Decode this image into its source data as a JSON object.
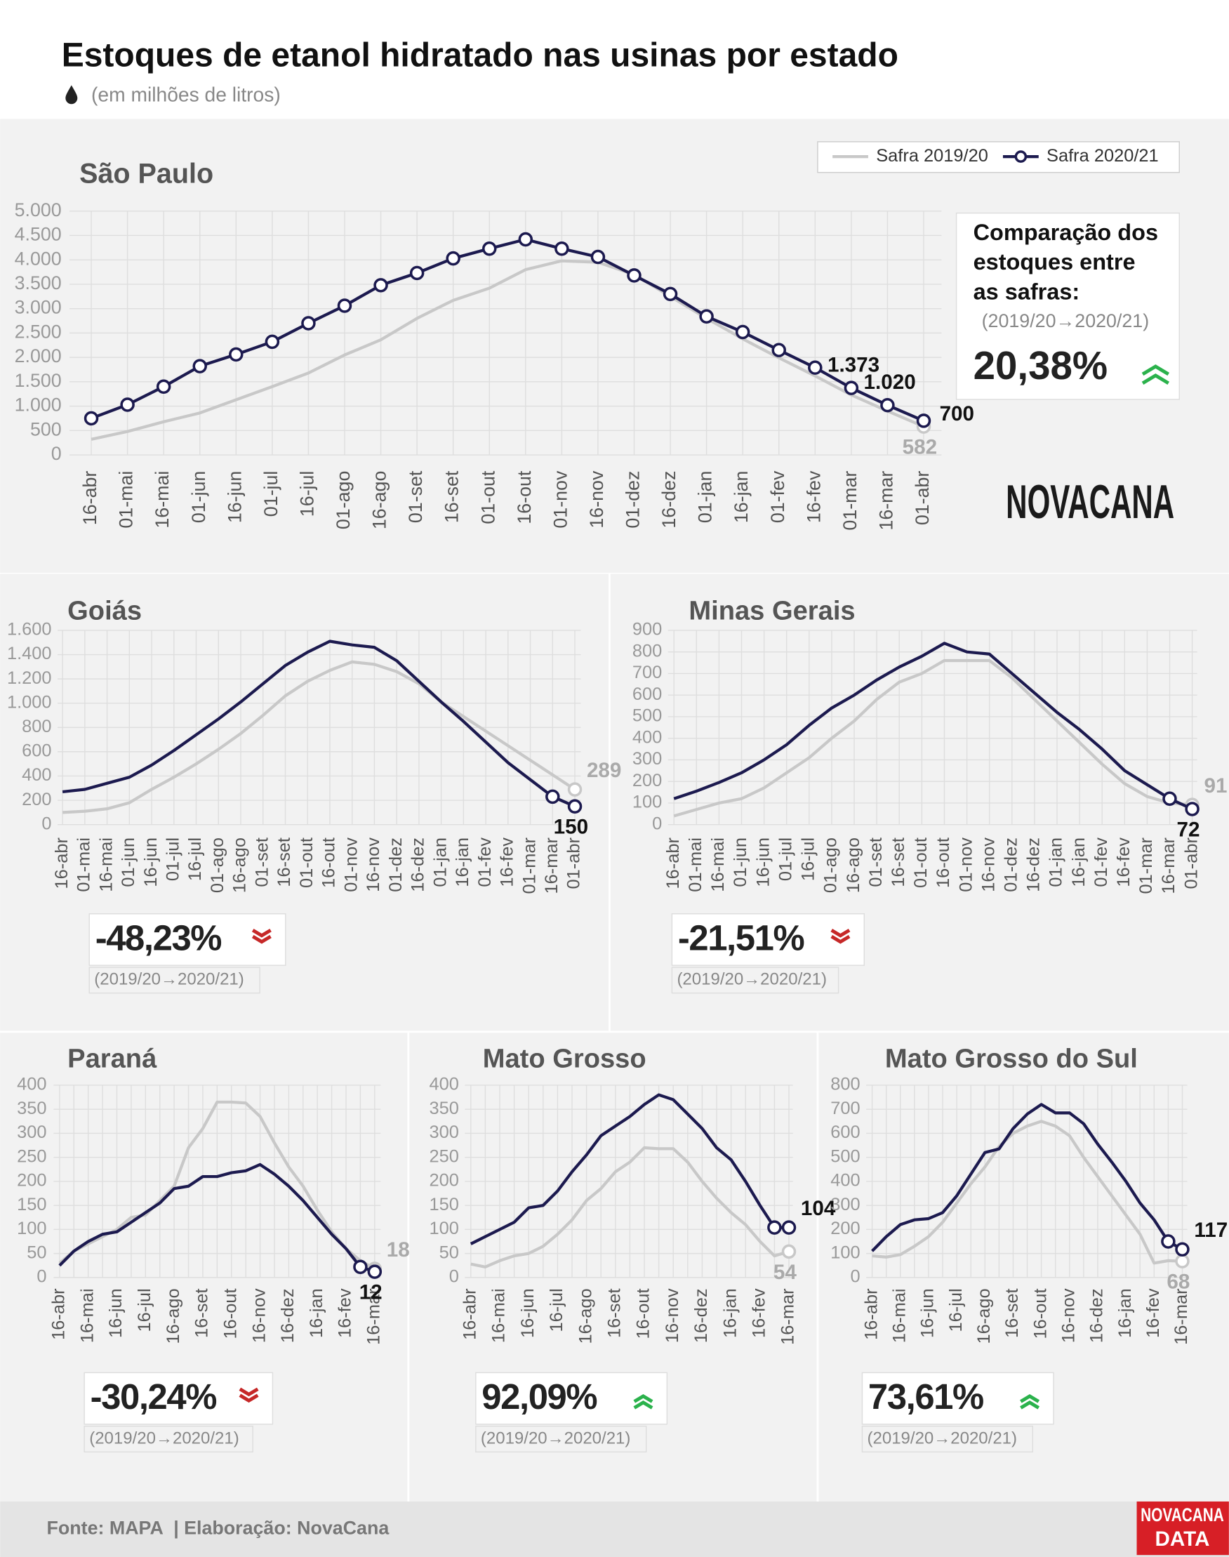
{
  "header": {
    "title": "Estoques de etanol hidratado nas usinas por estado",
    "subtitle": "(em milhões de litros)",
    "logo": "NOVACANA"
  },
  "footer": {
    "source": "Fonte: MAPA",
    "credit": "| Elaboração: NovaCana",
    "logo_top": "NOVACANA",
    "logo_bottom": "DATA"
  },
  "chart_data": [
    {
      "type": "line",
      "title": "São Paulo",
      "grid": true,
      "categories": [
        "16-abr",
        "01-mai",
        "16-mai",
        "01-jun",
        "16-jun",
        "01-jul",
        "16-jul",
        "01-ago",
        "16-ago",
        "01-set",
        "16-set",
        "01-out",
        "16-out",
        "01-nov",
        "16-nov",
        "01-dez",
        "16-dez",
        "01-jan",
        "16-jan",
        "01-fev",
        "16-fev",
        "01-mar",
        "16-mar",
        "01-abr"
      ],
      "series": [
        {
          "name": "Safra 2019/20",
          "color": "#c8c8c8",
          "markers": "last",
          "values": [
            320,
            480,
            680,
            860,
            1130,
            1400,
            1680,
            2050,
            2360,
            2800,
            3170,
            3420,
            3800,
            3980,
            3950,
            3700,
            3250,
            2800,
            2380,
            1990,
            1620,
            1230,
            900,
            582
          ],
          "value_labels": [
            null,
            null,
            null,
            null,
            null,
            null,
            null,
            null,
            null,
            null,
            null,
            null,
            null,
            null,
            null,
            null,
            null,
            null,
            null,
            null,
            null,
            null,
            null,
            "582"
          ]
        },
        {
          "name": "Safra 2020/21",
          "color": "#1c1a4f",
          "markers": "all",
          "values": [
            750,
            1030,
            1400,
            1820,
            2060,
            2320,
            2700,
            3060,
            3480,
            3730,
            4030,
            4230,
            4420,
            4230,
            4060,
            3680,
            3300,
            2840,
            2520,
            2150,
            1790,
            1373,
            1020,
            700
          ],
          "value_labels": [
            null,
            null,
            null,
            null,
            null,
            null,
            null,
            null,
            null,
            null,
            null,
            null,
            null,
            null,
            null,
            null,
            null,
            null,
            null,
            null,
            null,
            "1.373",
            "1.020",
            "700"
          ]
        }
      ],
      "ylim": [
        0,
        5000
      ],
      "yticks": [
        0,
        500,
        {
          "value": 1000,
          "label": "1.000"
        },
        {
          "value": 1500,
          "label": "1.500"
        },
        {
          "value": 2000,
          "label": "2.000"
        },
        {
          "value": 2500,
          "label": "2.500"
        },
        {
          "value": 3000,
          "label": "3.000"
        },
        {
          "value": 3500,
          "label": "3.500"
        },
        {
          "value": 4000,
          "label": "4.000"
        },
        {
          "value": 4500,
          "label": "4.500"
        },
        {
          "value": 5000,
          "label": "5.000"
        }
      ],
      "comparison_heading": [
        "Comparação dos",
        "estoques entre",
        "as safras:"
      ],
      "comparison_period": "(2019/20→2020/21)",
      "comparison": "20,38%",
      "trend": "up"
    },
    {
      "type": "line",
      "title": "Goiás",
      "grid": true,
      "categories": [
        "16-abr",
        "01-mai",
        "16-mai",
        "01-jun",
        "16-jun",
        "01-jul",
        "16-jul",
        "01-ago",
        "16-ago",
        "01-set",
        "16-set",
        "01-out",
        "16-out",
        "01-nov",
        "16-nov",
        "01-dez",
        "16-dez",
        "01-jan",
        "16-jan",
        "01-fev",
        "16-fev",
        "01-mar",
        "16-mar",
        "01-abr"
      ],
      "series": [
        {
          "color": "#c8c8c8",
          "markers": "last",
          "values": [
            100,
            110,
            130,
            180,
            290,
            390,
            500,
            620,
            750,
            900,
            1060,
            1180,
            1270,
            1340,
            1320,
            1260,
            1160,
            1010,
            890,
            770,
            650,
            530,
            410,
            289
          ],
          "value_labels": [
            null,
            null,
            null,
            null,
            null,
            null,
            null,
            null,
            null,
            null,
            null,
            null,
            null,
            null,
            null,
            null,
            null,
            null,
            null,
            null,
            null,
            null,
            null,
            "289"
          ]
        },
        {
          "color": "#1c1a4f",
          "markers": "last-two",
          "values": [
            270,
            290,
            340,
            390,
            490,
            610,
            740,
            870,
            1010,
            1160,
            1310,
            1420,
            1510,
            1480,
            1460,
            1350,
            1180,
            1010,
            850,
            680,
            510,
            370,
            230,
            150
          ],
          "value_labels": [
            null,
            null,
            null,
            null,
            null,
            null,
            null,
            null,
            null,
            null,
            null,
            null,
            null,
            null,
            null,
            null,
            null,
            null,
            null,
            null,
            null,
            null,
            null,
            "150"
          ]
        }
      ],
      "ylim": [
        0,
        1600
      ],
      "yticks": [
        0,
        200,
        400,
        600,
        800,
        {
          "value": 1000,
          "label": "1.000"
        },
        {
          "value": 1200,
          "label": "1.200"
        },
        {
          "value": 1400,
          "label": "1.400"
        },
        {
          "value": 1600,
          "label": "1.600"
        }
      ],
      "comparison_period": "(2019/20→2020/21)",
      "comparison": "-48,23%",
      "trend": "down"
    },
    {
      "type": "line",
      "title": "Minas Gerais",
      "grid": true,
      "categories": [
        "16-abr",
        "01-mai",
        "16-mai",
        "01-jun",
        "16-jun",
        "01-jul",
        "16-jul",
        "01-ago",
        "16-ago",
        "01-set",
        "16-set",
        "01-out",
        "16-out",
        "01-nov",
        "16-nov",
        "01-dez",
        "16-dez",
        "01-jan",
        "16-jan",
        "01-fev",
        "16-fev",
        "01-mar",
        "16-mar",
        "01-abr"
      ],
      "series": [
        {
          "color": "#c8c8c8",
          "markers": "last",
          "values": [
            40,
            70,
            100,
            120,
            170,
            240,
            310,
            400,
            480,
            580,
            660,
            700,
            760,
            760,
            760,
            680,
            580,
            480,
            380,
            280,
            190,
            130,
            100,
            91
          ],
          "value_labels": [
            null,
            null,
            null,
            null,
            null,
            null,
            null,
            null,
            null,
            null,
            null,
            null,
            null,
            null,
            null,
            null,
            null,
            null,
            null,
            null,
            null,
            null,
            null,
            "91"
          ]
        },
        {
          "color": "#1c1a4f",
          "markers": "last-two",
          "values": [
            120,
            155,
            195,
            240,
            300,
            370,
            460,
            540,
            600,
            670,
            730,
            780,
            840,
            800,
            790,
            700,
            610,
            520,
            440,
            350,
            250,
            185,
            120,
            72
          ],
          "value_labels": [
            null,
            null,
            null,
            null,
            null,
            null,
            null,
            null,
            null,
            null,
            null,
            null,
            null,
            null,
            null,
            null,
            null,
            null,
            null,
            null,
            null,
            null,
            null,
            "72"
          ]
        }
      ],
      "ylim": [
        0,
        900
      ],
      "yticks": [
        0,
        100,
        200,
        300,
        400,
        500,
        600,
        700,
        800,
        900
      ],
      "comparison_period": "(2019/20→2020/21)",
      "comparison": "-21,51%",
      "trend": "down"
    },
    {
      "type": "line",
      "title": "Paraná",
      "grid": true,
      "categories": [
        "16-abr",
        null,
        "16-mai",
        null,
        "16-jun",
        null,
        "16-jul",
        null,
        "16-ago",
        null,
        "16-set",
        null,
        "16-out",
        null,
        "16-nov",
        null,
        "16-dez",
        null,
        "16-jan",
        null,
        "16-fev",
        null,
        "16-mar"
      ],
      "series": [
        {
          "color": "#c8c8c8",
          "markers": "last",
          "values": [
            30,
            55,
            70,
            85,
            100,
            125,
            130,
            160,
            190,
            270,
            310,
            365,
            365,
            363,
            335,
            280,
            230,
            190,
            140,
            95,
            60,
            35,
            18
          ],
          "value_labels": [
            null,
            null,
            null,
            null,
            null,
            null,
            null,
            null,
            null,
            null,
            null,
            null,
            null,
            null,
            null,
            null,
            null,
            null,
            null,
            null,
            null,
            null,
            "18"
          ]
        },
        {
          "color": "#1c1a4f",
          "markers": "last-two",
          "values": [
            25,
            55,
            75,
            90,
            95,
            115,
            135,
            155,
            185,
            190,
            210,
            210,
            218,
            222,
            235,
            215,
            190,
            160,
            125,
            90,
            60,
            22,
            12
          ],
          "value_labels": [
            null,
            null,
            null,
            null,
            null,
            null,
            null,
            null,
            null,
            null,
            null,
            null,
            null,
            null,
            null,
            null,
            null,
            null,
            null,
            null,
            null,
            null,
            "12"
          ]
        }
      ],
      "ylim": [
        0,
        400
      ],
      "yticks": [
        0,
        50,
        100,
        150,
        200,
        250,
        300,
        350,
        400
      ],
      "comparison_period": "(2019/20→2020/21)",
      "comparison": "-30,24%",
      "trend": "down"
    },
    {
      "type": "line",
      "title": "Mato Grosso",
      "grid": true,
      "categories": [
        "16-abr",
        null,
        "16-mai",
        null,
        "16-jun",
        null,
        "16-jul",
        null,
        "16-ago",
        null,
        "16-set",
        null,
        "16-out",
        null,
        "16-nov",
        null,
        "16-dez",
        null,
        "16-jan",
        null,
        "16-fev",
        null,
        "16-mar"
      ],
      "series": [
        {
          "color": "#c8c8c8",
          "markers": "last",
          "values": [
            28,
            22,
            35,
            45,
            50,
            65,
            90,
            120,
            160,
            185,
            220,
            240,
            270,
            268,
            268,
            240,
            200,
            165,
            135,
            110,
            75,
            45,
            54
          ],
          "value_labels": [
            null,
            null,
            null,
            null,
            null,
            null,
            null,
            null,
            null,
            null,
            null,
            null,
            null,
            null,
            null,
            null,
            null,
            null,
            null,
            null,
            null,
            null,
            "54"
          ]
        },
        {
          "color": "#1c1a4f",
          "markers": "last-two",
          "values": [
            70,
            85,
            100,
            115,
            145,
            150,
            180,
            220,
            255,
            295,
            315,
            335,
            360,
            380,
            370,
            340,
            310,
            270,
            245,
            200,
            150,
            104,
            104
          ],
          "value_labels": [
            null,
            null,
            null,
            null,
            null,
            null,
            null,
            null,
            null,
            null,
            null,
            null,
            null,
            null,
            null,
            null,
            null,
            null,
            null,
            null,
            null,
            null,
            "104"
          ]
        }
      ],
      "ylim": [
        0,
        400
      ],
      "yticks": [
        0,
        50,
        100,
        150,
        200,
        250,
        300,
        350,
        400
      ],
      "comparison_period": "(2019/20→2020/21)",
      "comparison": "92,09%",
      "trend": "up"
    },
    {
      "type": "line",
      "title": "Mato Grosso do Sul",
      "grid": true,
      "categories": [
        "16-abr",
        null,
        "16-mai",
        null,
        "16-jun",
        null,
        "16-jul",
        null,
        "16-ago",
        null,
        "16-set",
        null,
        "16-out",
        null,
        "16-nov",
        null,
        "16-dez",
        null,
        "16-jan",
        null,
        "16-fev",
        null,
        "16-mar"
      ],
      "series": [
        {
          "color": "#c8c8c8",
          "markers": "last",
          "values": [
            90,
            85,
            95,
            130,
            170,
            230,
            310,
            390,
            460,
            545,
            600,
            630,
            650,
            630,
            590,
            500,
            420,
            340,
            260,
            180,
            60,
            70,
            68
          ],
          "value_labels": [
            null,
            null,
            null,
            null,
            null,
            null,
            null,
            null,
            null,
            null,
            null,
            null,
            null,
            null,
            null,
            null,
            null,
            null,
            null,
            null,
            null,
            null,
            "68"
          ]
        },
        {
          "color": "#1c1a4f",
          "markers": "last-two",
          "values": [
            110,
            170,
            220,
            240,
            245,
            270,
            340,
            430,
            520,
            535,
            620,
            680,
            720,
            685,
            685,
            640,
            555,
            480,
            400,
            310,
            240,
            150,
            117
          ],
          "value_labels": [
            null,
            null,
            null,
            null,
            null,
            null,
            null,
            null,
            null,
            null,
            null,
            null,
            null,
            null,
            null,
            null,
            null,
            null,
            null,
            null,
            null,
            null,
            "117"
          ]
        }
      ],
      "ylim": [
        0,
        800
      ],
      "yticks": [
        0,
        100,
        200,
        300,
        400,
        500,
        600,
        700,
        800
      ],
      "comparison_period": "(2019/20→2020/21)",
      "comparison": "73,61%",
      "trend": "up"
    }
  ]
}
